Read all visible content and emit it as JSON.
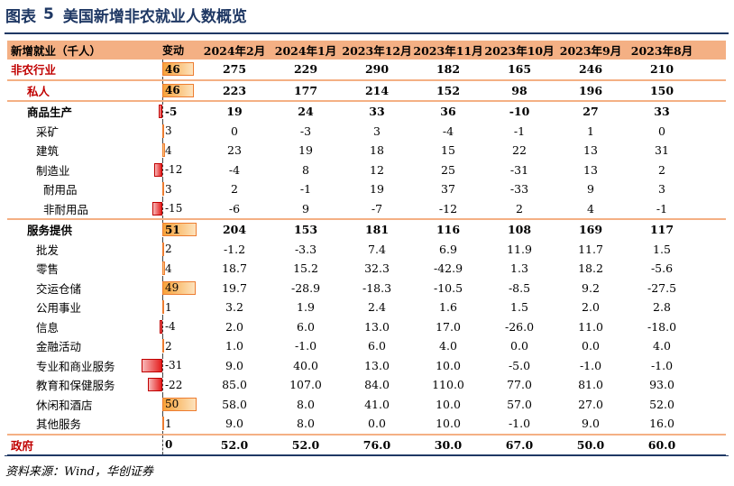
{
  "title": {
    "prefix": "图表",
    "number": "5",
    "text": "美国新增非农就业人数概览"
  },
  "header": {
    "label": "新增就业（千人）",
    "change": "变动",
    "months": [
      "2024年2月",
      "2024年1月",
      "2023年12月",
      "2023年11月",
      "2023年10月",
      "2023年9月",
      "2023年8月"
    ]
  },
  "rows": [
    {
      "label": "非农行业",
      "change": "46",
      "values": [
        "275",
        "229",
        "290",
        "182",
        "165",
        "246",
        "210"
      ],
      "style": "hl"
    },
    {
      "label": "私人",
      "change": "46",
      "values": [
        "223",
        "177",
        "214",
        "152",
        "98",
        "196",
        "150"
      ],
      "style": "hl"
    },
    {
      "label": "商品生产",
      "change": "-5",
      "values": [
        "19",
        "24",
        "33",
        "36",
        "-10",
        "27",
        "33"
      ],
      "style": "bold"
    },
    {
      "label": "采矿",
      "change": "3",
      "values": [
        "0",
        "-3",
        "3",
        "-4",
        "-1",
        "1",
        "0"
      ],
      "style": "plain"
    },
    {
      "label": "建筑",
      "change": "4",
      "values": [
        "23",
        "19",
        "18",
        "15",
        "22",
        "13",
        "31"
      ],
      "style": "plain"
    },
    {
      "label": "制造业",
      "change": "-12",
      "values": [
        "-4",
        "8",
        "12",
        "25",
        "-31",
        "13",
        "2"
      ],
      "style": "plain"
    },
    {
      "label": "耐用品",
      "change": "3",
      "values": [
        "2",
        "-1",
        "19",
        "37",
        "-33",
        "9",
        "3"
      ],
      "style": "sub"
    },
    {
      "label": "非耐用品",
      "change": "-15",
      "values": [
        "-6",
        "9",
        "-7",
        "-12",
        "2",
        "4",
        "-1"
      ],
      "style": "sub"
    },
    {
      "label": "服务提供",
      "change": "51",
      "values": [
        "204",
        "153",
        "181",
        "116",
        "108",
        "169",
        "117"
      ],
      "style": "bold"
    },
    {
      "label": "批发",
      "change": "2",
      "values": [
        "-1.2",
        "-3.3",
        "7.4",
        "6.9",
        "11.9",
        "11.7",
        "1.5"
      ],
      "style": "plain"
    },
    {
      "label": "零售",
      "change": "4",
      "values": [
        "18.7",
        "15.2",
        "32.3",
        "-42.9",
        "1.3",
        "18.2",
        "-5.6"
      ],
      "style": "plain"
    },
    {
      "label": "交运仓储",
      "change": "49",
      "values": [
        "19.7",
        "-28.9",
        "-18.3",
        "-10.5",
        "-8.5",
        "9.2",
        "-27.5"
      ],
      "style": "plain"
    },
    {
      "label": "公用事业",
      "change": "1",
      "values": [
        "3.2",
        "1.9",
        "2.4",
        "1.6",
        "1.5",
        "2.0",
        "2.8"
      ],
      "style": "plain"
    },
    {
      "label": "信息",
      "change": "-4",
      "values": [
        "2.0",
        "6.0",
        "13.0",
        "17.0",
        "-26.0",
        "11.0",
        "-18.0"
      ],
      "style": "plain"
    },
    {
      "label": "金融活动",
      "change": "2",
      "values": [
        "1.0",
        "-1.0",
        "6.0",
        "4.0",
        "0.0",
        "0.0",
        "4.0"
      ],
      "style": "plain"
    },
    {
      "label": "专业和商业服务",
      "change": "-31",
      "values": [
        "9.0",
        "40.0",
        "13.0",
        "10.0",
        "-5.0",
        "-1.0",
        "-1.0"
      ],
      "style": "plain"
    },
    {
      "label": "教育和保健服务",
      "change": "-22",
      "values": [
        "85.0",
        "107.0",
        "84.0",
        "110.0",
        "77.0",
        "81.0",
        "93.0"
      ],
      "style": "plain"
    },
    {
      "label": "休闲和酒店",
      "change": "50",
      "values": [
        "58.0",
        "8.0",
        "41.0",
        "10.0",
        "57.0",
        "27.0",
        "52.0"
      ],
      "style": "plain"
    },
    {
      "label": "其他服务",
      "change": "1",
      "values": [
        "9.0",
        "8.0",
        "0.0",
        "10.0",
        "-1.0",
        "9.0",
        "16.0"
      ],
      "style": "plain"
    },
    {
      "label": "政府",
      "change": "0",
      "values": [
        "52.0",
        "52.0",
        "76.0",
        "30.0",
        "67.0",
        "50.0",
        "60.0"
      ],
      "style": "gov"
    }
  ],
  "source": "资料来源：Wind，华创证券",
  "colors": {
    "title": "#1f3864",
    "header_bg": "#f4b084",
    "highlight_text": "#c00000",
    "pos_bar": "#f7a23a",
    "neg_bar": "#e41e1e"
  }
}
